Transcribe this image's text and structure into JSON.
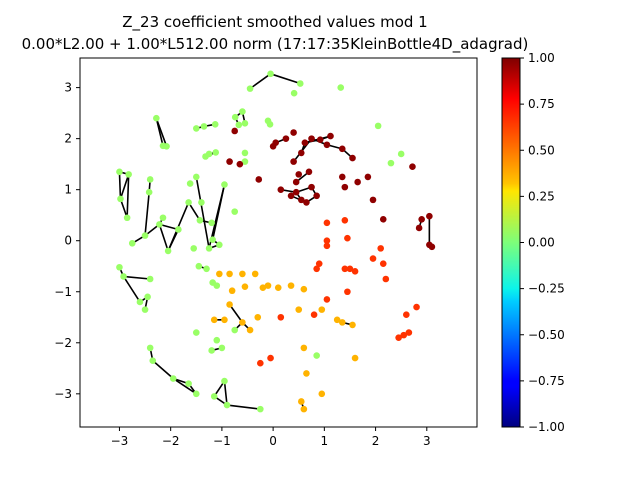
{
  "chart_data": {
    "type": "scatter",
    "title": "Z_23 coefficient smoothed values mod 1",
    "subtitle": "0.00*L2.00 + 1.00*L512.00 norm (17:17:35KleinBottle4D_adagrad)",
    "xlim": [
      -3.77,
      3.98
    ],
    "ylim": [
      -3.65,
      3.58
    ],
    "xticks": [
      -3,
      -2,
      -1,
      0,
      1,
      2,
      3
    ],
    "yticks": [
      -3,
      -2,
      -1,
      0,
      1,
      2,
      3
    ],
    "colorbar": {
      "colormap": "jet",
      "range": [
        -1.0,
        1.0
      ],
      "ticks": [
        "-1.00",
        "-0.75",
        "-0.50",
        "-0.25",
        "0.00",
        "0.25",
        "0.50",
        "0.75",
        "1.00"
      ]
    },
    "grid": false,
    "points": [
      {
        "x": -0.05,
        "y": 3.27,
        "v": 0.05
      },
      {
        "x": 0.53,
        "y": 3.08,
        "v": 0.05
      },
      {
        "x": -0.45,
        "y": 2.98,
        "v": 0.05
      },
      {
        "x": 0.41,
        "y": 2.89,
        "v": 0.05
      },
      {
        "x": 1.32,
        "y": 3.0,
        "v": 0.05
      },
      {
        "x": -0.6,
        "y": 2.53,
        "v": 0.05
      },
      {
        "x": -0.74,
        "y": 2.42,
        "v": 0.05
      },
      {
        "x": -0.67,
        "y": 2.27,
        "v": 0.05
      },
      {
        "x": -0.55,
        "y": 2.3,
        "v": 0.05
      },
      {
        "x": -0.1,
        "y": 2.35,
        "v": 0.05
      },
      {
        "x": -0.06,
        "y": 2.28,
        "v": 0.05
      },
      {
        "x": -2.28,
        "y": 2.4,
        "v": 0.05
      },
      {
        "x": -2.15,
        "y": 1.86,
        "v": 0.05
      },
      {
        "x": -2.08,
        "y": 1.85,
        "v": 0.05
      },
      {
        "x": -1.5,
        "y": 2.2,
        "v": 0.05
      },
      {
        "x": -1.35,
        "y": 2.24,
        "v": 0.05
      },
      {
        "x": -1.13,
        "y": 2.28,
        "v": 0.05
      },
      {
        "x": -1.32,
        "y": 1.65,
        "v": 0.05
      },
      {
        "x": -1.12,
        "y": 1.73,
        "v": 0.05
      },
      {
        "x": -1.25,
        "y": 1.7,
        "v": 0.05
      },
      {
        "x": -0.55,
        "y": 1.72,
        "v": 0.05
      },
      {
        "x": -0.55,
        "y": 1.55,
        "v": 0.05
      },
      {
        "x": -3.0,
        "y": 1.35,
        "v": 0.05
      },
      {
        "x": -2.82,
        "y": 1.3,
        "v": 0.05
      },
      {
        "x": -2.98,
        "y": 0.82,
        "v": 0.05
      },
      {
        "x": -2.85,
        "y": 0.45,
        "v": 0.05
      },
      {
        "x": -2.4,
        "y": 1.2,
        "v": 0.05
      },
      {
        "x": -2.42,
        "y": 0.95,
        "v": 0.05
      },
      {
        "x": -1.62,
        "y": 1.12,
        "v": 0.05
      },
      {
        "x": -1.5,
        "y": 1.25,
        "v": 0.05
      },
      {
        "x": -0.95,
        "y": 1.1,
        "v": 0.05
      },
      {
        "x": -1.65,
        "y": 0.75,
        "v": 0.05
      },
      {
        "x": -1.4,
        "y": 0.75,
        "v": 0.05
      },
      {
        "x": -0.75,
        "y": 0.57,
        "v": 0.05
      },
      {
        "x": -1.43,
        "y": 0.4,
        "v": 0.05
      },
      {
        "x": -1.2,
        "y": 0.35,
        "v": 0.05
      },
      {
        "x": -2.15,
        "y": 0.45,
        "v": 0.05
      },
      {
        "x": -2.22,
        "y": 0.32,
        "v": 0.05
      },
      {
        "x": -2.5,
        "y": 0.1,
        "v": 0.05
      },
      {
        "x": -2.75,
        "y": -0.05,
        "v": 0.05
      },
      {
        "x": -1.85,
        "y": 0.22,
        "v": 0.05
      },
      {
        "x": -2.05,
        "y": -0.2,
        "v": 0.05
      },
      {
        "x": -1.55,
        "y": -0.15,
        "v": 0.05
      },
      {
        "x": -1.25,
        "y": -0.15,
        "v": 0.05
      },
      {
        "x": -1.18,
        "y": 0.02,
        "v": 0.05
      },
      {
        "x": -1.05,
        "y": -0.08,
        "v": 0.05
      },
      {
        "x": -1.45,
        "y": -0.5,
        "v": 0.05
      },
      {
        "x": -1.3,
        "y": -0.55,
        "v": 0.05
      },
      {
        "x": -1.18,
        "y": -0.82,
        "v": 0.05
      },
      {
        "x": -1.1,
        "y": -0.88,
        "v": 0.05
      },
      {
        "x": -3.0,
        "y": -0.52,
        "v": 0.05
      },
      {
        "x": -2.92,
        "y": -0.7,
        "v": 0.05
      },
      {
        "x": -2.4,
        "y": -0.75,
        "v": 0.05
      },
      {
        "x": -2.6,
        "y": -1.2,
        "v": 0.05
      },
      {
        "x": -2.45,
        "y": -1.1,
        "v": 0.05
      },
      {
        "x": -2.5,
        "y": -1.35,
        "v": 0.05
      },
      {
        "x": -1.5,
        "y": -1.8,
        "v": 0.05
      },
      {
        "x": -1.1,
        "y": -1.95,
        "v": 0.05
      },
      {
        "x": -0.75,
        "y": -1.75,
        "v": 0.05
      },
      {
        "x": -2.4,
        "y": -2.1,
        "v": 0.05
      },
      {
        "x": -2.35,
        "y": -2.35,
        "v": 0.05
      },
      {
        "x": -1.95,
        "y": -2.7,
        "v": 0.05
      },
      {
        "x": -1.65,
        "y": -2.8,
        "v": 0.05
      },
      {
        "x": -1.5,
        "y": -3.0,
        "v": 0.05
      },
      {
        "x": -1.2,
        "y": -2.15,
        "v": 0.05
      },
      {
        "x": -1.0,
        "y": -2.1,
        "v": 0.05
      },
      {
        "x": -1.15,
        "y": -3.05,
        "v": 0.05
      },
      {
        "x": -0.95,
        "y": -2.75,
        "v": 0.05
      },
      {
        "x": -0.9,
        "y": -3.22,
        "v": 0.05
      },
      {
        "x": -0.25,
        "y": -3.3,
        "v": 0.05
      },
      {
        "x": 0.85,
        "y": -2.25,
        "v": 0.05
      },
      {
        "x": 2.05,
        "y": 2.25,
        "v": 0.05
      },
      {
        "x": 2.5,
        "y": 1.7,
        "v": 0.05
      },
      {
        "x": 2.3,
        "y": 1.52,
        "v": 0.05
      },
      {
        "x": 0.95,
        "y": -3.0,
        "v": 0.4
      },
      {
        "x": 0.65,
        "y": -2.6,
        "v": 0.4
      },
      {
        "x": 0.6,
        "y": -2.1,
        "v": 0.4
      },
      {
        "x": 0.55,
        "y": -3.15,
        "v": 0.4
      },
      {
        "x": 0.6,
        "y": -3.3,
        "v": 0.4
      },
      {
        "x": 0.5,
        "y": -1.35,
        "v": 0.4
      },
      {
        "x": 0.95,
        "y": -1.35,
        "v": 0.4
      },
      {
        "x": 1.25,
        "y": -1.55,
        "v": 0.4
      },
      {
        "x": 1.35,
        "y": -1.6,
        "v": 0.4
      },
      {
        "x": 1.55,
        "y": -1.65,
        "v": 0.4
      },
      {
        "x": 1.6,
        "y": -2.3,
        "v": 0.4
      },
      {
        "x": -1.15,
        "y": -1.55,
        "v": 0.4
      },
      {
        "x": -0.95,
        "y": -1.55,
        "v": 0.4
      },
      {
        "x": -0.6,
        "y": -1.6,
        "v": 0.4
      },
      {
        "x": -0.45,
        "y": -1.75,
        "v": 0.4
      },
      {
        "x": -0.85,
        "y": -1.25,
        "v": 0.4
      },
      {
        "x": -0.3,
        "y": -1.5,
        "v": 0.4
      },
      {
        "x": -1.05,
        "y": -0.65,
        "v": 0.4
      },
      {
        "x": -0.85,
        "y": -0.65,
        "v": 0.4
      },
      {
        "x": -0.6,
        "y": -0.65,
        "v": 0.4
      },
      {
        "x": -0.35,
        "y": -0.65,
        "v": 0.4
      },
      {
        "x": -0.55,
        "y": -0.9,
        "v": 0.4
      },
      {
        "x": -0.8,
        "y": -0.98,
        "v": 0.4
      },
      {
        "x": -0.2,
        "y": -0.92,
        "v": 0.4
      },
      {
        "x": -0.1,
        "y": -0.88,
        "v": 0.4
      },
      {
        "x": 0.1,
        "y": -0.92,
        "v": 0.4
      },
      {
        "x": 0.35,
        "y": -0.88,
        "v": 0.4
      },
      {
        "x": 0.6,
        "y": -0.95,
        "v": 0.4
      },
      {
        "x": 0.85,
        "y": -0.55,
        "v": 0.65
      },
      {
        "x": 0.9,
        "y": -0.45,
        "v": 0.65
      },
      {
        "x": 1.05,
        "y": -0.1,
        "v": 0.65
      },
      {
        "x": 1.05,
        "y": 0.35,
        "v": 0.65
      },
      {
        "x": 1.05,
        "y": 0.0,
        "v": 0.65
      },
      {
        "x": 1.4,
        "y": 0.4,
        "v": 0.65
      },
      {
        "x": 1.45,
        "y": 0.05,
        "v": 0.65
      },
      {
        "x": 1.5,
        "y": -0.55,
        "v": 0.65
      },
      {
        "x": 1.6,
        "y": -0.6,
        "v": 0.65
      },
      {
        "x": 1.95,
        "y": -0.35,
        "v": 0.65
      },
      {
        "x": 2.15,
        "y": -0.45,
        "v": 0.65
      },
      {
        "x": 2.2,
        "y": -0.75,
        "v": 0.65
      },
      {
        "x": 1.45,
        "y": -1.0,
        "v": 0.65
      },
      {
        "x": 1.05,
        "y": -1.15,
        "v": 0.65
      },
      {
        "x": 0.8,
        "y": -1.45,
        "v": 0.65
      },
      {
        "x": 0.15,
        "y": -1.5,
        "v": 0.65
      },
      {
        "x": -0.25,
        "y": -2.4,
        "v": 0.65
      },
      {
        "x": -0.05,
        "y": -2.3,
        "v": 0.65
      },
      {
        "x": 2.1,
        "y": -0.15,
        "v": 0.65
      },
      {
        "x": 2.45,
        "y": -1.9,
        "v": 0.65
      },
      {
        "x": 2.55,
        "y": -1.85,
        "v": 0.65
      },
      {
        "x": 2.65,
        "y": -1.8,
        "v": 0.65
      },
      {
        "x": 2.6,
        "y": -1.45,
        "v": 0.65
      },
      {
        "x": 2.8,
        "y": -1.3,
        "v": 0.65
      },
      {
        "x": 1.4,
        "y": -0.55,
        "v": 0.65
      },
      {
        "x": -0.75,
        "y": 2.15,
        "v": 0.97
      },
      {
        "x": -0.85,
        "y": 1.55,
        "v": 0.97
      },
      {
        "x": -0.65,
        "y": 1.5,
        "v": 0.97
      },
      {
        "x": -0.28,
        "y": 1.2,
        "v": 0.97
      },
      {
        "x": 0.0,
        "y": 1.85,
        "v": 0.97
      },
      {
        "x": 0.05,
        "y": 1.92,
        "v": 0.97
      },
      {
        "x": 0.25,
        "y": 2.0,
        "v": 0.97
      },
      {
        "x": 0.4,
        "y": 2.12,
        "v": 0.97
      },
      {
        "x": 0.4,
        "y": 1.55,
        "v": 0.97
      },
      {
        "x": 0.55,
        "y": 1.72,
        "v": 0.97
      },
      {
        "x": 0.62,
        "y": 1.92,
        "v": 0.97
      },
      {
        "x": 0.75,
        "y": 2.0,
        "v": 0.97
      },
      {
        "x": 0.92,
        "y": 1.98,
        "v": 0.97
      },
      {
        "x": 1.05,
        "y": 1.88,
        "v": 0.97
      },
      {
        "x": 1.12,
        "y": 2.05,
        "v": 0.97
      },
      {
        "x": 1.35,
        "y": 1.8,
        "v": 0.97
      },
      {
        "x": 1.55,
        "y": 1.62,
        "v": 0.97
      },
      {
        "x": 0.7,
        "y": 1.35,
        "v": 0.97
      },
      {
        "x": 0.5,
        "y": 1.3,
        "v": 0.97
      },
      {
        "x": 0.45,
        "y": 1.15,
        "v": 0.97
      },
      {
        "x": 0.15,
        "y": 1.0,
        "v": 0.97
      },
      {
        "x": 0.45,
        "y": 0.95,
        "v": 0.97
      },
      {
        "x": 0.55,
        "y": 0.8,
        "v": 0.97
      },
      {
        "x": 0.65,
        "y": 0.75,
        "v": 0.97
      },
      {
        "x": 0.35,
        "y": 0.88,
        "v": 0.97
      },
      {
        "x": 0.85,
        "y": 0.88,
        "v": 0.97
      },
      {
        "x": 0.75,
        "y": 1.05,
        "v": 0.97
      },
      {
        "x": 1.35,
        "y": 1.25,
        "v": 0.97
      },
      {
        "x": 1.4,
        "y": 1.05,
        "v": 0.97
      },
      {
        "x": 1.65,
        "y": 1.15,
        "v": 0.97
      },
      {
        "x": 1.85,
        "y": 1.25,
        "v": 0.97
      },
      {
        "x": 1.95,
        "y": 0.8,
        "v": 0.97
      },
      {
        "x": 2.72,
        "y": 1.45,
        "v": 0.97
      },
      {
        "x": 2.85,
        "y": 0.25,
        "v": 0.97
      },
      {
        "x": 2.9,
        "y": 0.42,
        "v": 0.97
      },
      {
        "x": 3.05,
        "y": 0.48,
        "v": 0.97
      },
      {
        "x": 3.05,
        "y": -0.08,
        "v": 0.97
      },
      {
        "x": 3.1,
        "y": -0.12,
        "v": 0.97
      },
      {
        "x": 2.15,
        "y": 0.42,
        "v": 0.97
      }
    ],
    "segments": [
      [
        -0.05,
        3.27,
        0.53,
        3.08
      ],
      [
        -0.05,
        3.27,
        -0.45,
        2.98
      ],
      [
        -0.6,
        2.53,
        -0.74,
        2.42
      ],
      [
        -0.74,
        2.42,
        -0.67,
        2.27
      ],
      [
        -0.6,
        2.53,
        -0.55,
        2.3
      ],
      [
        -0.1,
        2.35,
        -0.06,
        2.28
      ],
      [
        -2.28,
        2.4,
        -2.15,
        1.86
      ],
      [
        -2.28,
        2.4,
        -2.08,
        1.85
      ],
      [
        -1.5,
        2.2,
        -1.35,
        2.24
      ],
      [
        -1.35,
        2.24,
        -1.13,
        2.28
      ],
      [
        -1.32,
        1.65,
        -1.12,
        1.73
      ],
      [
        -1.25,
        1.7,
        -1.12,
        1.73
      ],
      [
        -3.0,
        1.35,
        -2.82,
        1.3
      ],
      [
        -3.0,
        1.35,
        -2.98,
        0.82
      ],
      [
        -2.82,
        1.3,
        -2.98,
        0.82
      ],
      [
        -2.98,
        0.82,
        -2.85,
        0.45
      ],
      [
        -2.82,
        1.3,
        -2.85,
        0.45
      ],
      [
        -2.4,
        1.2,
        -2.42,
        0.95
      ],
      [
        -1.65,
        0.75,
        -1.43,
        0.4
      ],
      [
        -1.43,
        0.4,
        -1.2,
        0.35
      ],
      [
        -1.65,
        0.75,
        -2.05,
        -0.2
      ],
      [
        -1.5,
        1.25,
        -1.25,
        -0.15
      ],
      [
        -0.95,
        1.1,
        -1.25,
        -0.15
      ],
      [
        -0.95,
        1.1,
        -1.18,
        0.02
      ],
      [
        -1.18,
        0.02,
        -1.05,
        -0.08
      ],
      [
        -1.25,
        -0.15,
        -1.05,
        -0.08
      ],
      [
        -2.42,
        0.95,
        -2.5,
        0.1
      ],
      [
        -2.15,
        0.45,
        -2.22,
        0.32
      ],
      [
        -2.5,
        0.1,
        -2.22,
        0.32
      ],
      [
        -2.22,
        0.32,
        -1.85,
        0.22
      ],
      [
        -2.22,
        0.32,
        -2.05,
        -0.2
      ],
      [
        -2.5,
        0.1,
        -2.75,
        -0.05
      ],
      [
        -2.05,
        -0.2,
        -1.85,
        0.22
      ],
      [
        -1.45,
        -0.5,
        -1.3,
        -0.55
      ],
      [
        -1.18,
        -0.82,
        -1.1,
        -0.88
      ],
      [
        -3.0,
        -0.52,
        -2.92,
        -0.7
      ],
      [
        -2.92,
        -0.7,
        -2.4,
        -0.75
      ],
      [
        -2.92,
        -0.7,
        -2.6,
        -1.2
      ],
      [
        -2.6,
        -1.2,
        -2.45,
        -1.1
      ],
      [
        -2.45,
        -1.1,
        -2.5,
        -1.35
      ],
      [
        -2.4,
        -2.1,
        -2.35,
        -2.35
      ],
      [
        -2.35,
        -2.35,
        -1.95,
        -2.7
      ],
      [
        -1.95,
        -2.7,
        -1.65,
        -2.8
      ],
      [
        -1.65,
        -2.8,
        -1.5,
        -3.0
      ],
      [
        -1.95,
        -2.7,
        -1.5,
        -3.0
      ],
      [
        -1.2,
        -2.15,
        -1.0,
        -2.1
      ],
      [
        -1.15,
        -3.05,
        -0.95,
        -2.75
      ],
      [
        -0.95,
        -2.75,
        -0.9,
        -3.22
      ],
      [
        -1.15,
        -3.05,
        -0.9,
        -3.22
      ],
      [
        -0.9,
        -3.22,
        -0.25,
        -3.3
      ],
      [
        -1.15,
        -1.55,
        -0.95,
        -1.55
      ],
      [
        -0.75,
        -1.75,
        -0.6,
        -1.6
      ],
      [
        -0.6,
        -1.6,
        -0.45,
        -1.75
      ],
      [
        -0.85,
        -1.25,
        -0.6,
        -1.6
      ],
      [
        0.55,
        -3.15,
        0.6,
        -3.3
      ],
      [
        0.0,
        1.85,
        0.05,
        1.92
      ],
      [
        0.05,
        1.92,
        0.25,
        2.0
      ],
      [
        0.55,
        1.72,
        0.62,
        1.92
      ],
      [
        0.62,
        1.92,
        0.92,
        1.98
      ],
      [
        0.92,
        1.98,
        1.12,
        2.05
      ],
      [
        1.05,
        1.88,
        1.35,
        1.8
      ],
      [
        1.35,
        1.8,
        1.55,
        1.62
      ],
      [
        0.4,
        1.55,
        0.75,
        2.0
      ],
      [
        0.75,
        2.0,
        1.05,
        1.88
      ],
      [
        0.62,
        1.92,
        1.12,
        2.05
      ],
      [
        0.45,
        1.15,
        0.7,
        1.35
      ],
      [
        0.15,
        1.0,
        0.45,
        0.95
      ],
      [
        0.45,
        0.95,
        0.55,
        0.8
      ],
      [
        0.55,
        0.8,
        0.65,
        0.75
      ],
      [
        0.35,
        0.88,
        0.65,
        0.75
      ],
      [
        0.65,
        0.75,
        0.85,
        0.88
      ],
      [
        0.45,
        0.95,
        0.75,
        1.05
      ],
      [
        0.75,
        1.05,
        0.85,
        0.88
      ],
      [
        2.85,
        0.25,
        2.9,
        0.42
      ],
      [
        3.05,
        0.48,
        3.05,
        -0.08
      ],
      [
        3.05,
        -0.08,
        3.1,
        -0.12
      ],
      [
        1.5,
        -0.55,
        1.6,
        -0.6
      ],
      [
        2.45,
        -1.9,
        2.55,
        -1.85
      ],
      [
        2.55,
        -1.85,
        2.65,
        -1.8
      ],
      [
        1.35,
        -1.6,
        1.55,
        -1.65
      ]
    ]
  }
}
